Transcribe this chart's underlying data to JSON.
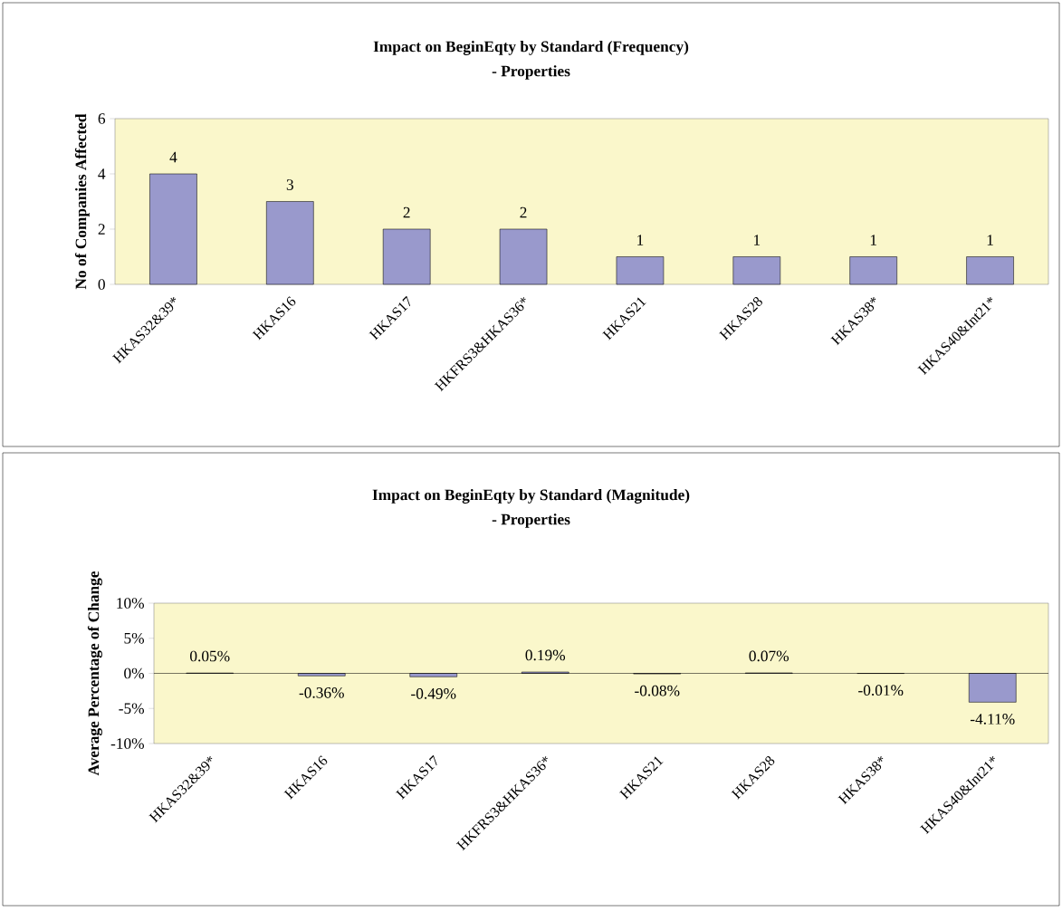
{
  "chart_data": [
    {
      "type": "bar",
      "title": "Impact on BeginEqty by Standard (Frequency)",
      "subtitle": "- Properties",
      "ylabel": "No of Companies Affected",
      "categories": [
        "HKAS32&39*",
        "HKAS16",
        "HKAS17",
        "HKFRS3&HKAS36*",
        "HKAS21",
        "HKAS28",
        "HKAS38*",
        "HKAS40&Int21*"
      ],
      "values": [
        4,
        3,
        2,
        2,
        1,
        1,
        1,
        1
      ],
      "color": "#9999cc",
      "ylim": [
        0,
        6
      ],
      "yticks": [
        0,
        2,
        4,
        6
      ],
      "data_labels": true
    },
    {
      "type": "bar",
      "title": "Impact on BeginEqty by Standard (Magnitude)",
      "subtitle": "- Properties",
      "ylabel": "Average Percentage of Change",
      "categories": [
        "HKAS32&39*",
        "HKAS16",
        "HKAS17",
        "HKFRS3&HKAS36*",
        "HKAS21",
        "HKAS28",
        "HKAS38*",
        "HKAS40&Int21*"
      ],
      "values": [
        0.05,
        -0.36,
        -0.49,
        0.19,
        -0.08,
        0.07,
        -0.01,
        -4.11
      ],
      "value_labels": [
        "0.05%",
        "-0.36%",
        "-0.49%",
        "0.19%",
        "-0.08%",
        "0.07%",
        "-0.01%",
        "-4.11%"
      ],
      "color": "#9999cc",
      "ylim": [
        -10,
        10
      ],
      "yticks": [
        {
          "value": -10,
          "label": "-10%"
        },
        {
          "value": -5,
          "label": "-5%"
        },
        {
          "value": 0,
          "label": "0%"
        },
        {
          "value": 5,
          "label": "5%"
        },
        {
          "value": 10,
          "label": "10%"
        }
      ]
    }
  ]
}
